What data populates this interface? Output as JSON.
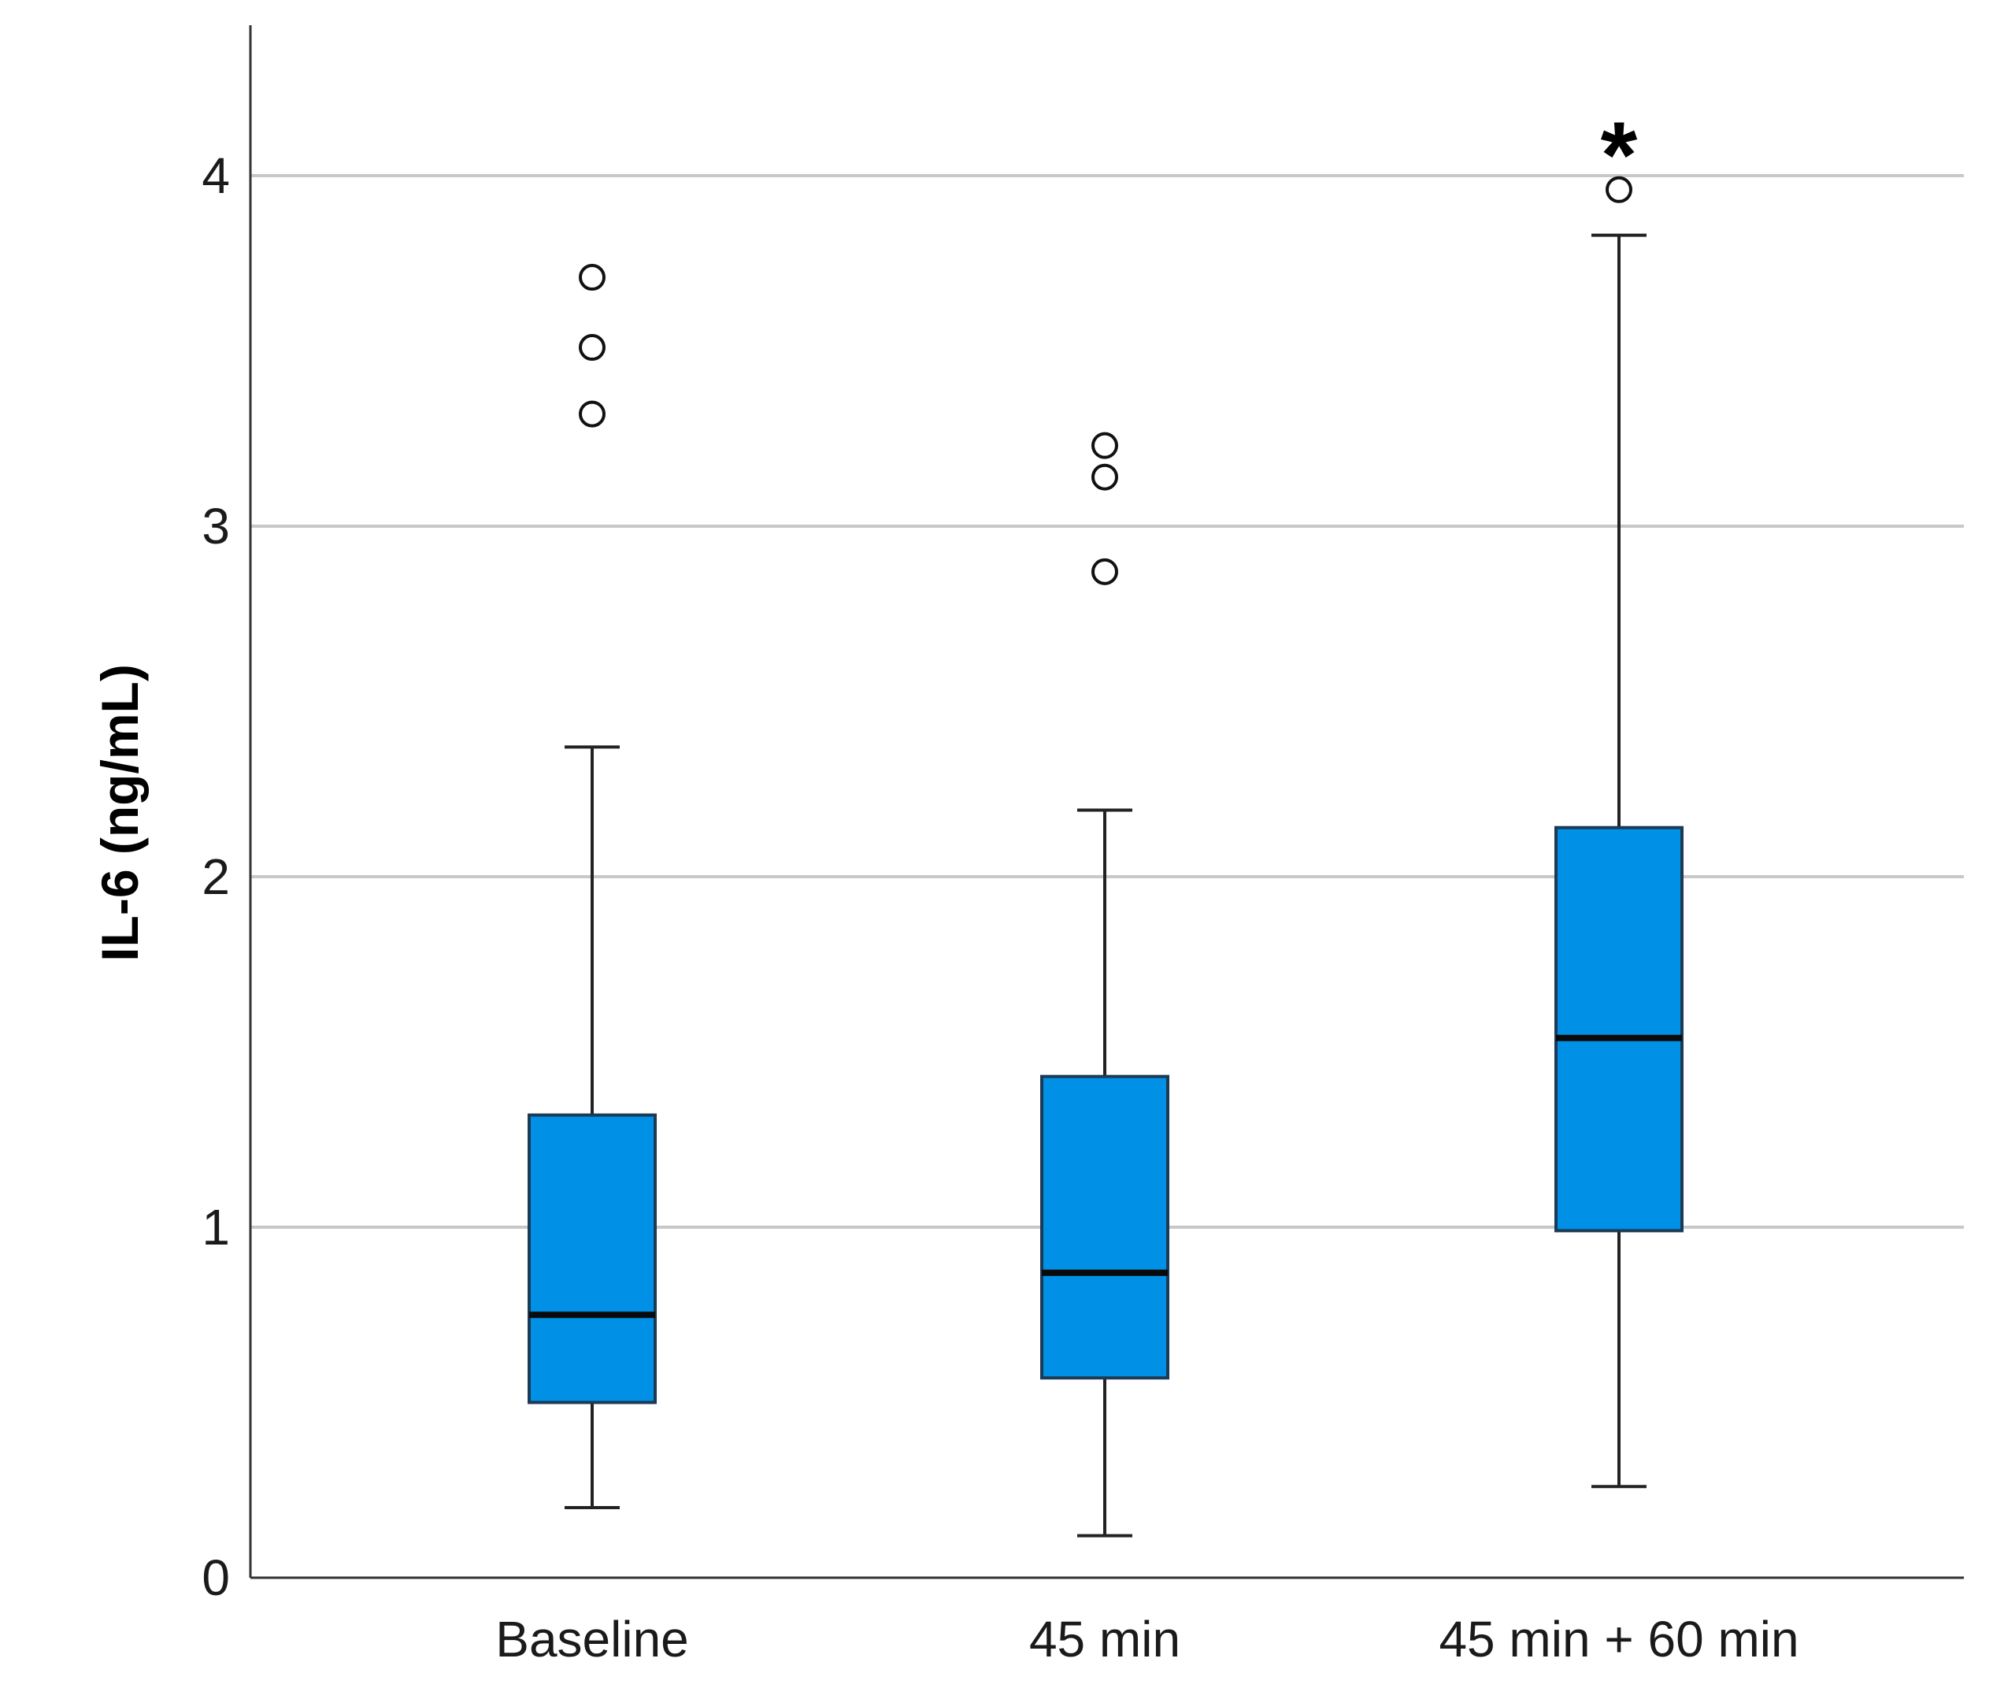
{
  "chart_data": {
    "type": "box",
    "title": "",
    "xlabel": "",
    "ylabel": "IL-6 (ng/mL)",
    "ylim": [
      0,
      4.4
    ],
    "yticks": [
      "0",
      "1",
      "2",
      "3",
      "4"
    ],
    "grid": "horizontal",
    "box_color": "#0090e6",
    "categories": [
      "Baseline",
      "45 min",
      "45 min + 60 min"
    ],
    "boxes": [
      {
        "category": "Baseline",
        "whisker_low": 0.2,
        "q1": 0.5,
        "median": 0.75,
        "q3": 1.32,
        "whisker_high": 2.37,
        "outliers": [
          3.32,
          3.51,
          3.71
        ]
      },
      {
        "category": "45 min",
        "whisker_low": 0.12,
        "q1": 0.57,
        "median": 0.87,
        "q3": 1.43,
        "whisker_high": 2.19,
        "outliers": [
          2.87,
          3.14,
          3.23
        ]
      },
      {
        "category": "45 min + 60 min",
        "whisker_low": 0.26,
        "q1": 0.99,
        "median": 1.54,
        "q3": 2.14,
        "whisker_high": 3.83,
        "outliers": [
          3.96
        ]
      }
    ],
    "annotations": [
      {
        "category": "45 min + 60 min",
        "text": "*"
      }
    ]
  }
}
